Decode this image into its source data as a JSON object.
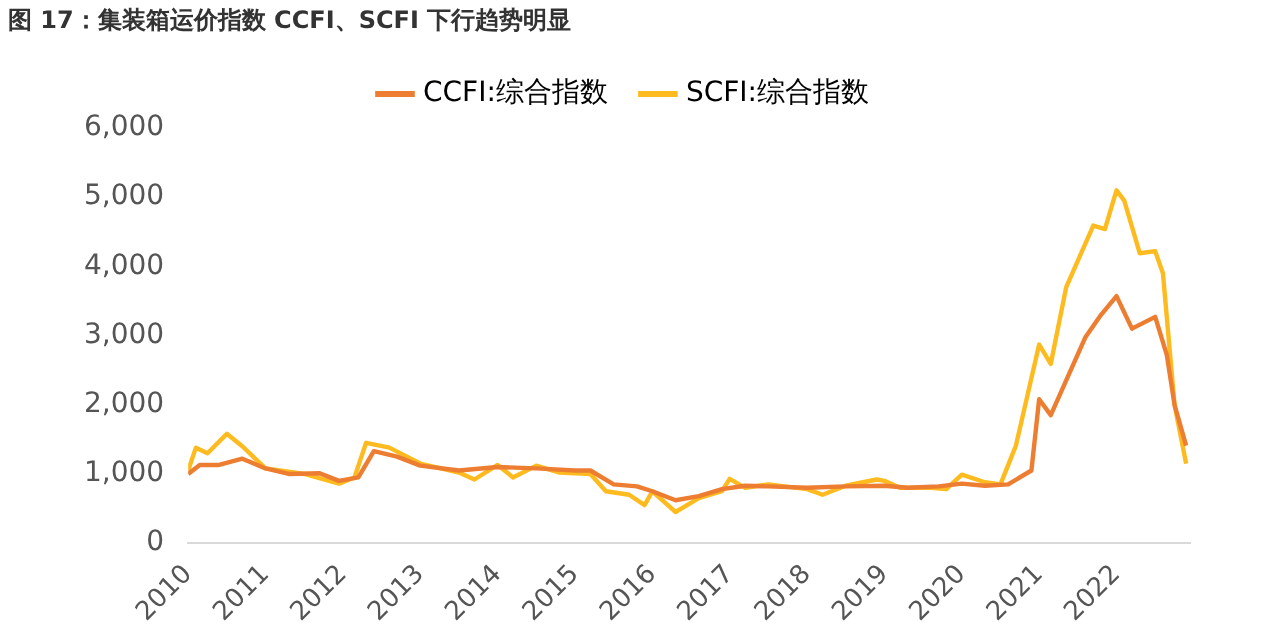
{
  "chart_data": {
    "type": "line",
    "title": "图 17：集装箱运价指数 CCFI、SCFI 下行趋势明显",
    "xlim": [
      2010,
      2022.95
    ],
    "xticks": [
      2010,
      2011,
      2012,
      2013,
      2014,
      2015,
      2016,
      2017,
      2018,
      2019,
      2020,
      2021,
      2022
    ],
    "ylim": [
      0,
      6000
    ],
    "yticks": [
      0,
      {
        "value": 1000,
        "label": "1,000"
      },
      {
        "value": 2000,
        "label": "2,000"
      },
      {
        "value": 3000,
        "label": "3,000"
      },
      {
        "value": 4000,
        "label": "4,000"
      },
      {
        "value": 5000,
        "label": "5,000"
      },
      {
        "value": 6000,
        "label": "6,000"
      }
    ],
    "grid": false,
    "legend": "top",
    "marker": "none",
    "line_style": "solid",
    "series": [
      {
        "name": "CCFI:综合指数",
        "color": "#ed7d31",
        "x": [
          2010,
          2010.15,
          2010.4,
          2010.7,
          2011,
          2011.3,
          2011.7,
          2011.95,
          2012.2,
          2012.4,
          2012.7,
          2013,
          2013.5,
          2014,
          2014.5,
          2015,
          2015.2,
          2015.5,
          2015.8,
          2016,
          2016.3,
          2016.6,
          2016.9,
          2017.2,
          2017.5,
          2018,
          2018.5,
          2019,
          2019.3,
          2019.7,
          2020,
          2020.3,
          2020.6,
          2020.9,
          2021,
          2021.15,
          2021.6,
          2021.8,
          2022,
          2022.2,
          2022.5,
          2022.65,
          2022.75,
          2022.9
        ],
        "values": [
          1000,
          1130,
          1130,
          1220,
          1080,
          1000,
          1010,
          900,
          950,
          1330,
          1250,
          1120,
          1050,
          1100,
          1080,
          1050,
          1050,
          850,
          820,
          750,
          620,
          680,
          780,
          830,
          820,
          800,
          820,
          830,
          800,
          820,
          860,
          830,
          850,
          1050,
          2080,
          1850,
          2980,
          3300,
          3570,
          3100,
          3270,
          2720,
          2000,
          1410
        ]
      },
      {
        "name": "SCFI:综合指数",
        "color": "#fdbb1f",
        "x": [
          2010,
          2010.1,
          2010.25,
          2010.5,
          2010.7,
          2011,
          2011.5,
          2011.95,
          2012.15,
          2012.3,
          2012.6,
          2013,
          2013.5,
          2013.7,
          2014,
          2014.2,
          2014.5,
          2014.8,
          2015.2,
          2015.4,
          2015.7,
          2015.9,
          2016,
          2016.3,
          2016.6,
          2016.9,
          2017,
          2017.2,
          2017.5,
          2018,
          2018.2,
          2018.5,
          2018.9,
          2019,
          2019.2,
          2019.6,
          2019.8,
          2020,
          2020.3,
          2020.5,
          2020.7,
          2021,
          2021.15,
          2021.35,
          2021.7,
          2021.85,
          2022,
          2022.1,
          2022.3,
          2022.5,
          2022.6,
          2022.75,
          2022.9
        ],
        "values": [
          1050,
          1380,
          1300,
          1580,
          1400,
          1080,
          1000,
          860,
          950,
          1450,
          1380,
          1150,
          1020,
          920,
          1130,
          950,
          1120,
          1020,
          1000,
          750,
          700,
          550,
          750,
          450,
          650,
          750,
          930,
          800,
          850,
          780,
          700,
          830,
          920,
          900,
          800,
          800,
          780,
          990,
          880,
          850,
          1410,
          2870,
          2590,
          3700,
          4590,
          4540,
          5100,
          4950,
          4190,
          4220,
          3900,
          2000,
          1150
        ]
      }
    ]
  }
}
